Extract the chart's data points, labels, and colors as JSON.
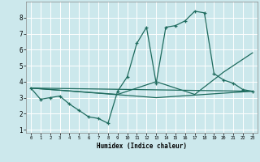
{
  "xlabel": "Humidex (Indice chaleur)",
  "xlim": [
    -0.5,
    23.5
  ],
  "ylim": [
    0.8,
    9.0
  ],
  "yticks": [
    1,
    2,
    3,
    4,
    5,
    6,
    7,
    8
  ],
  "xticks": [
    0,
    1,
    2,
    3,
    4,
    5,
    6,
    7,
    8,
    9,
    10,
    11,
    12,
    13,
    14,
    15,
    16,
    17,
    18,
    19,
    20,
    21,
    22,
    23
  ],
  "bg_color": "#cce8ec",
  "grid_color": "#ffffff",
  "line_color": "#1e6b5e",
  "series": [
    [
      0,
      3.6
    ],
    [
      1,
      2.9
    ],
    [
      2,
      3.0
    ],
    [
      3,
      3.1
    ],
    [
      4,
      2.6
    ],
    [
      5,
      2.2
    ],
    [
      6,
      1.8
    ],
    [
      7,
      1.7
    ],
    [
      8,
      1.4
    ],
    [
      9,
      3.4
    ],
    [
      10,
      4.3
    ],
    [
      11,
      6.4
    ],
    [
      12,
      7.4
    ],
    [
      13,
      3.9
    ],
    [
      14,
      7.4
    ],
    [
      15,
      7.5
    ],
    [
      16,
      7.8
    ],
    [
      17,
      8.4
    ],
    [
      18,
      8.3
    ],
    [
      19,
      4.5
    ],
    [
      20,
      4.1
    ],
    [
      21,
      3.9
    ],
    [
      22,
      3.5
    ],
    [
      23,
      3.4
    ]
  ],
  "line2": [
    [
      0,
      3.6
    ],
    [
      23,
      3.4
    ]
  ],
  "line3": [
    [
      0,
      3.6
    ],
    [
      9,
      3.2
    ],
    [
      13,
      4.0
    ],
    [
      17,
      3.2
    ],
    [
      20,
      4.6
    ],
    [
      23,
      5.8
    ]
  ],
  "line4": [
    [
      0,
      3.6
    ],
    [
      13,
      3.0
    ],
    [
      23,
      3.4
    ]
  ],
  "figsize": [
    3.2,
    2.0
  ],
  "dpi": 100
}
